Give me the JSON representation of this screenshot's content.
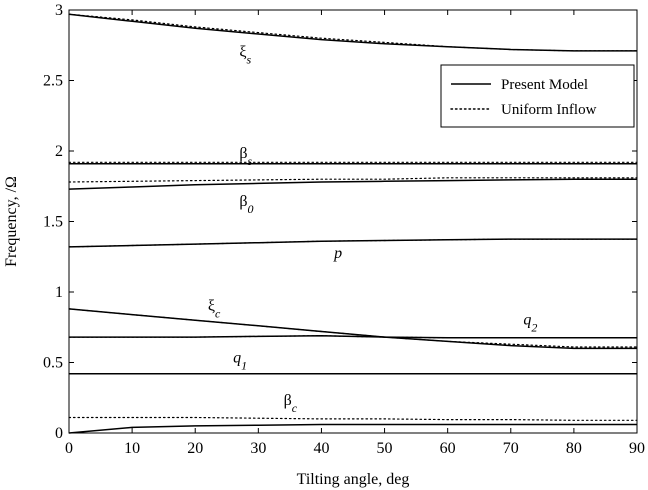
{
  "chart_data": {
    "type": "line",
    "title": "",
    "xlabel": "Tilting angle, deg",
    "ylabel": "Frequency, /Ω",
    "xlim": [
      0,
      90
    ],
    "ylim": [
      0,
      3
    ],
    "xticks": [
      "0",
      "10",
      "20",
      "30",
      "40",
      "50",
      "60",
      "70",
      "80",
      "90"
    ],
    "yticks": [
      "0",
      "0.5",
      "1",
      "1.5",
      "2",
      "2.5",
      "3"
    ],
    "grid": false,
    "legend_position": "top-right",
    "legend": [
      {
        "label": "Present Model",
        "style": "solid"
      },
      {
        "label": "Uniform Inflow",
        "style": "dotted"
      }
    ],
    "x": [
      0,
      10,
      20,
      30,
      40,
      50,
      60,
      70,
      80,
      90
    ],
    "series": [
      {
        "model": "present",
        "mode": "xi_s",
        "values": [
          2.97,
          2.92,
          2.87,
          2.83,
          2.79,
          2.76,
          2.74,
          2.72,
          2.71,
          2.71
        ]
      },
      {
        "model": "uniform",
        "mode": "xi_s",
        "values": [
          2.97,
          2.93,
          2.88,
          2.84,
          2.8,
          2.77,
          2.74,
          2.72,
          2.71,
          2.71
        ]
      },
      {
        "model": "present",
        "mode": "beta_s",
        "values": [
          1.91,
          1.91,
          1.91,
          1.91,
          1.91,
          1.91,
          1.91,
          1.91,
          1.91,
          1.91
        ]
      },
      {
        "model": "uniform",
        "mode": "beta_s",
        "values": [
          1.92,
          1.92,
          1.92,
          1.92,
          1.92,
          1.92,
          1.92,
          1.92,
          1.92,
          1.92
        ]
      },
      {
        "model": "present",
        "mode": "beta_0",
        "values": [
          1.73,
          1.745,
          1.76,
          1.77,
          1.78,
          1.785,
          1.79,
          1.795,
          1.8,
          1.8
        ]
      },
      {
        "model": "uniform",
        "mode": "beta_0",
        "values": [
          1.78,
          1.785,
          1.79,
          1.795,
          1.8,
          1.8,
          1.81,
          1.81,
          1.81,
          1.81
        ]
      },
      {
        "model": "present",
        "mode": "p",
        "values": [
          1.32,
          1.33,
          1.34,
          1.35,
          1.36,
          1.365,
          1.37,
          1.375,
          1.375,
          1.375
        ]
      },
      {
        "model": "uniform",
        "mode": "p",
        "values": [
          1.32,
          1.33,
          1.34,
          1.35,
          1.36,
          1.365,
          1.37,
          1.375,
          1.375,
          1.375
        ]
      },
      {
        "model": "present",
        "mode": "xi_c",
        "values": [
          0.88,
          0.84,
          0.8,
          0.76,
          0.72,
          0.68,
          0.65,
          0.62,
          0.6,
          0.6
        ]
      },
      {
        "model": "uniform",
        "mode": "xi_c",
        "values": [
          0.88,
          0.84,
          0.8,
          0.76,
          0.72,
          0.68,
          0.65,
          0.63,
          0.61,
          0.61
        ]
      },
      {
        "model": "present",
        "mode": "q_2",
        "values": [
          0.68,
          0.68,
          0.68,
          0.685,
          0.69,
          0.68,
          0.675,
          0.675,
          0.675,
          0.675
        ]
      },
      {
        "model": "uniform",
        "mode": "q_2",
        "values": [
          0.68,
          0.68,
          0.68,
          0.685,
          0.69,
          0.68,
          0.675,
          0.675,
          0.675,
          0.675
        ]
      },
      {
        "model": "present",
        "mode": "q_1",
        "values": [
          0.42,
          0.42,
          0.42,
          0.42,
          0.42,
          0.42,
          0.42,
          0.42,
          0.42,
          0.42
        ]
      },
      {
        "model": "uniform",
        "mode": "q_1",
        "values": [
          0.42,
          0.42,
          0.42,
          0.42,
          0.42,
          0.42,
          0.42,
          0.42,
          0.42,
          0.42
        ]
      },
      {
        "model": "present",
        "mode": "beta_c",
        "values": [
          0.0,
          0.04,
          0.05,
          0.055,
          0.06,
          0.06,
          0.06,
          0.06,
          0.06,
          0.06
        ]
      },
      {
        "model": "uniform",
        "mode": "beta_c",
        "values": [
          0.11,
          0.11,
          0.11,
          0.105,
          0.1,
          0.1,
          0.095,
          0.095,
          0.09,
          0.09
        ]
      }
    ],
    "annotations": [
      {
        "name": "xi-s",
        "base": "ξ",
        "sub": "s",
        "x": 27,
        "y": 2.67
      },
      {
        "name": "beta-s",
        "base": "β",
        "sub": "s",
        "x": 27,
        "y": 1.95
      },
      {
        "name": "beta-0",
        "base": "β",
        "sub": "0",
        "x": 27,
        "y": 1.61
      },
      {
        "name": "p",
        "base": "p",
        "sub": "",
        "x": 42,
        "y": 1.24
      },
      {
        "name": "xi-c",
        "base": "ξ",
        "sub": "c",
        "x": 22,
        "y": 0.87
      },
      {
        "name": "q-2",
        "base": "q",
        "sub": "2",
        "x": 72,
        "y": 0.77
      },
      {
        "name": "q-1",
        "base": "q",
        "sub": "1",
        "x": 26,
        "y": 0.5
      },
      {
        "name": "beta-c",
        "base": "β",
        "sub": "c",
        "x": 34,
        "y": 0.2
      }
    ]
  }
}
